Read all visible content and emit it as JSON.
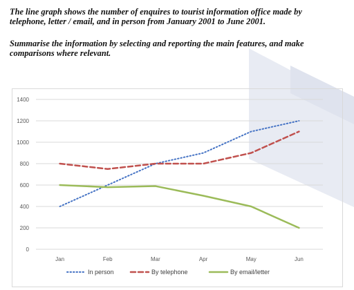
{
  "task": {
    "line1": "The line graph shows the number of enquires to tourist information office made by",
    "line2": "telephone, letter / email, and in person from January 2001 to June 2001.",
    "line3": "Summarise the information by selecting and reporting the main features, and make",
    "line4": "comparisons where relevant."
  },
  "chart_data": {
    "type": "line",
    "title": "",
    "xlabel": "",
    "ylabel": "",
    "categories": [
      "Jan",
      "Feb",
      "Mar",
      "Apr",
      "May",
      "Jun"
    ],
    "ylim": [
      0,
      1400
    ],
    "yticks": [
      0,
      200,
      400,
      600,
      800,
      1000,
      1200,
      1400
    ],
    "grid": true,
    "legend": "bottom",
    "series": [
      {
        "name": "In person",
        "values": [
          400,
          600,
          800,
          900,
          1100,
          1200
        ],
        "color": "#4472c4",
        "style": "dotted"
      },
      {
        "name": "By telephone",
        "values": [
          800,
          750,
          800,
          800,
          900,
          1100
        ],
        "color": "#c0504d",
        "style": "dashed"
      },
      {
        "name": "By email/letter",
        "values": [
          600,
          580,
          590,
          500,
          400,
          200
        ],
        "color": "#9bbb59",
        "style": "solid"
      }
    ]
  }
}
